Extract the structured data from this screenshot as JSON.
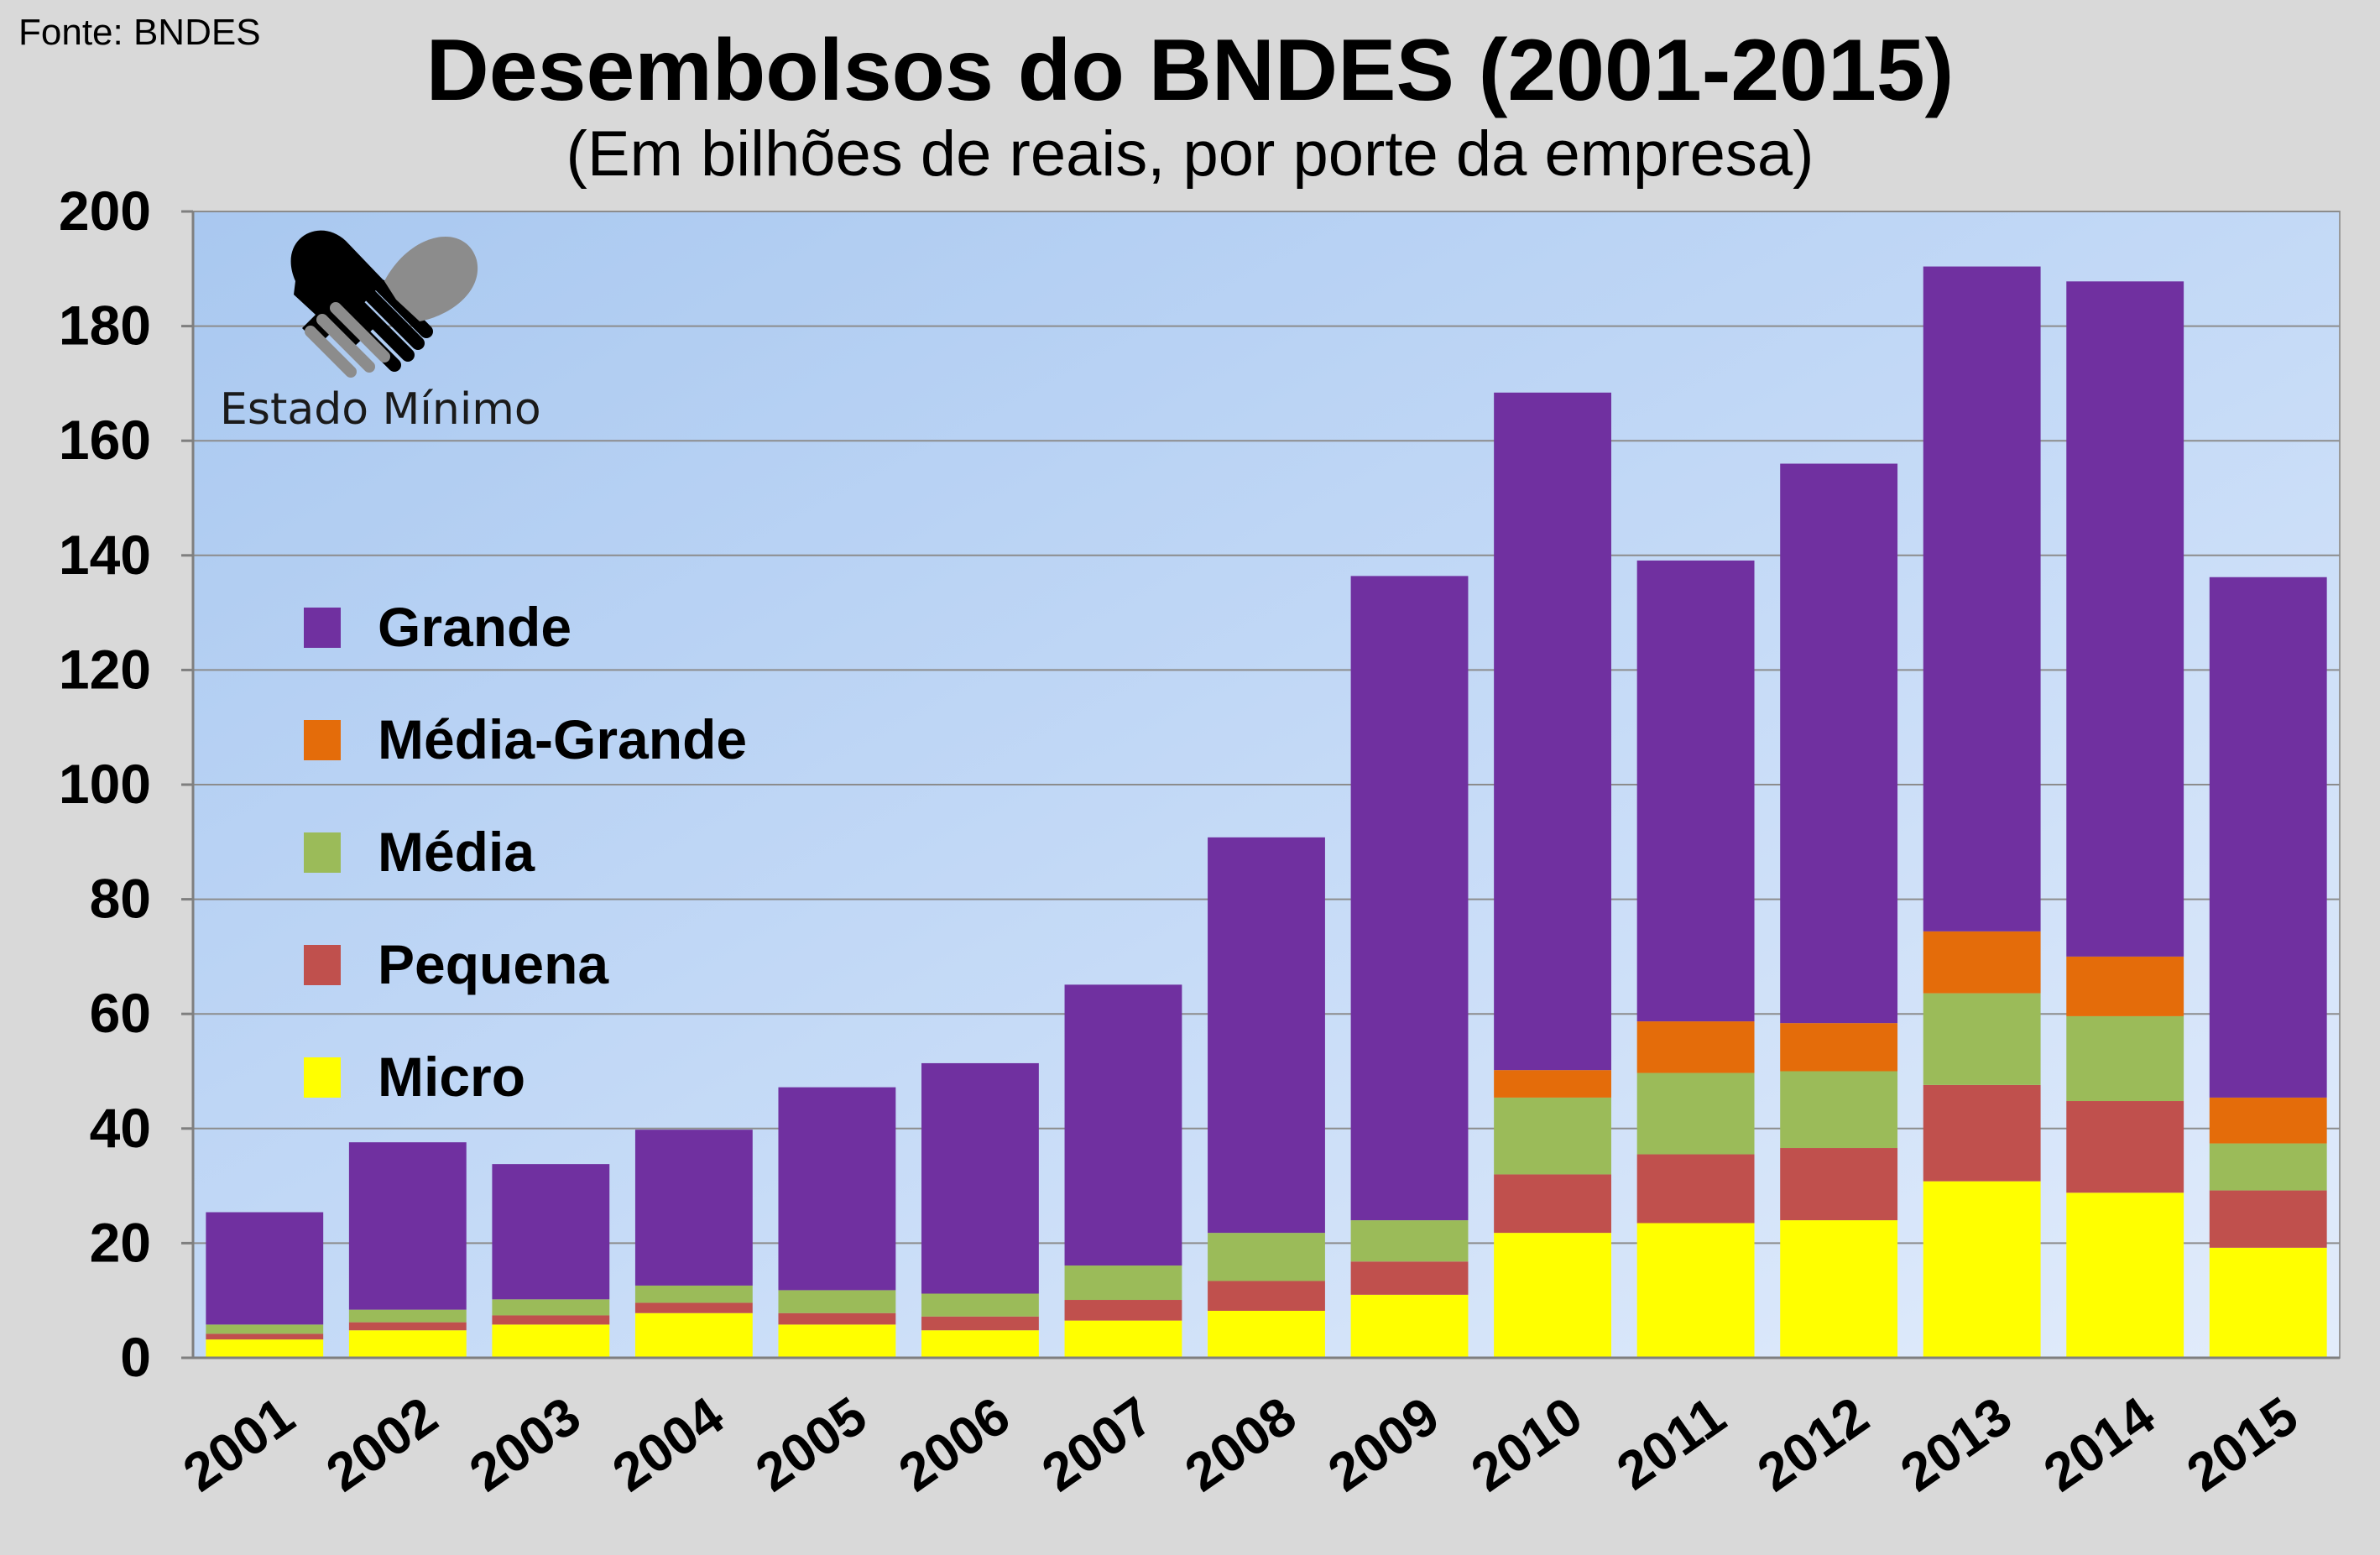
{
  "source": "Fonte: BNDES",
  "logo": {
    "text": "Estado Mínimo",
    "icon": "handshake-icon"
  },
  "chart_data": {
    "type": "bar",
    "stacked": true,
    "title": "Desembolsos do BNDES (2001-2015)",
    "subtitle": "(Em bilhões de reais, por porte da empresa)",
    "xlabel": "",
    "ylabel": "",
    "ylim": [
      0,
      200
    ],
    "yticks": [
      0,
      20,
      40,
      60,
      80,
      100,
      120,
      140,
      160,
      180,
      200
    ],
    "grid": true,
    "legend_position": "left",
    "categories": [
      "2001",
      "2002",
      "2003",
      "2004",
      "2005",
      "2006",
      "2007",
      "2008",
      "2009",
      "2010",
      "2011",
      "2012",
      "2013",
      "2014",
      "2015"
    ],
    "series": [
      {
        "name": "Micro",
        "color": "#ffff00",
        "values": [
          3.2,
          4.8,
          5.8,
          7.8,
          5.8,
          4.8,
          6.5,
          8.2,
          11.0,
          21.8,
          23.5,
          24.0,
          30.8,
          28.8,
          19.2
        ]
      },
      {
        "name": "Pequena",
        "color": "#c0504d",
        "values": [
          1.0,
          1.4,
          1.6,
          1.8,
          2.0,
          2.4,
          3.6,
          5.2,
          5.8,
          10.2,
          12.0,
          12.6,
          16.8,
          16.0,
          10.0
        ]
      },
      {
        "name": "Média",
        "color": "#9bbb59",
        "values": [
          1.6,
          2.2,
          2.8,
          3.0,
          4.0,
          4.0,
          6.0,
          8.4,
          7.2,
          13.4,
          14.2,
          13.4,
          16.0,
          14.8,
          8.2
        ]
      },
      {
        "name": "Média-Grande",
        "color": "#e46c0a",
        "values": [
          0.0,
          0.0,
          0.0,
          0.0,
          0.0,
          0.0,
          0.0,
          0.0,
          0.0,
          4.8,
          9.0,
          8.4,
          10.8,
          10.4,
          8.0
        ]
      },
      {
        "name": "Grande",
        "color": "#7030a0",
        "values": [
          19.6,
          29.2,
          23.6,
          27.2,
          35.4,
          40.2,
          49.0,
          69.0,
          112.4,
          118.2,
          80.4,
          97.6,
          116.0,
          117.8,
          90.8
        ]
      }
    ]
  }
}
